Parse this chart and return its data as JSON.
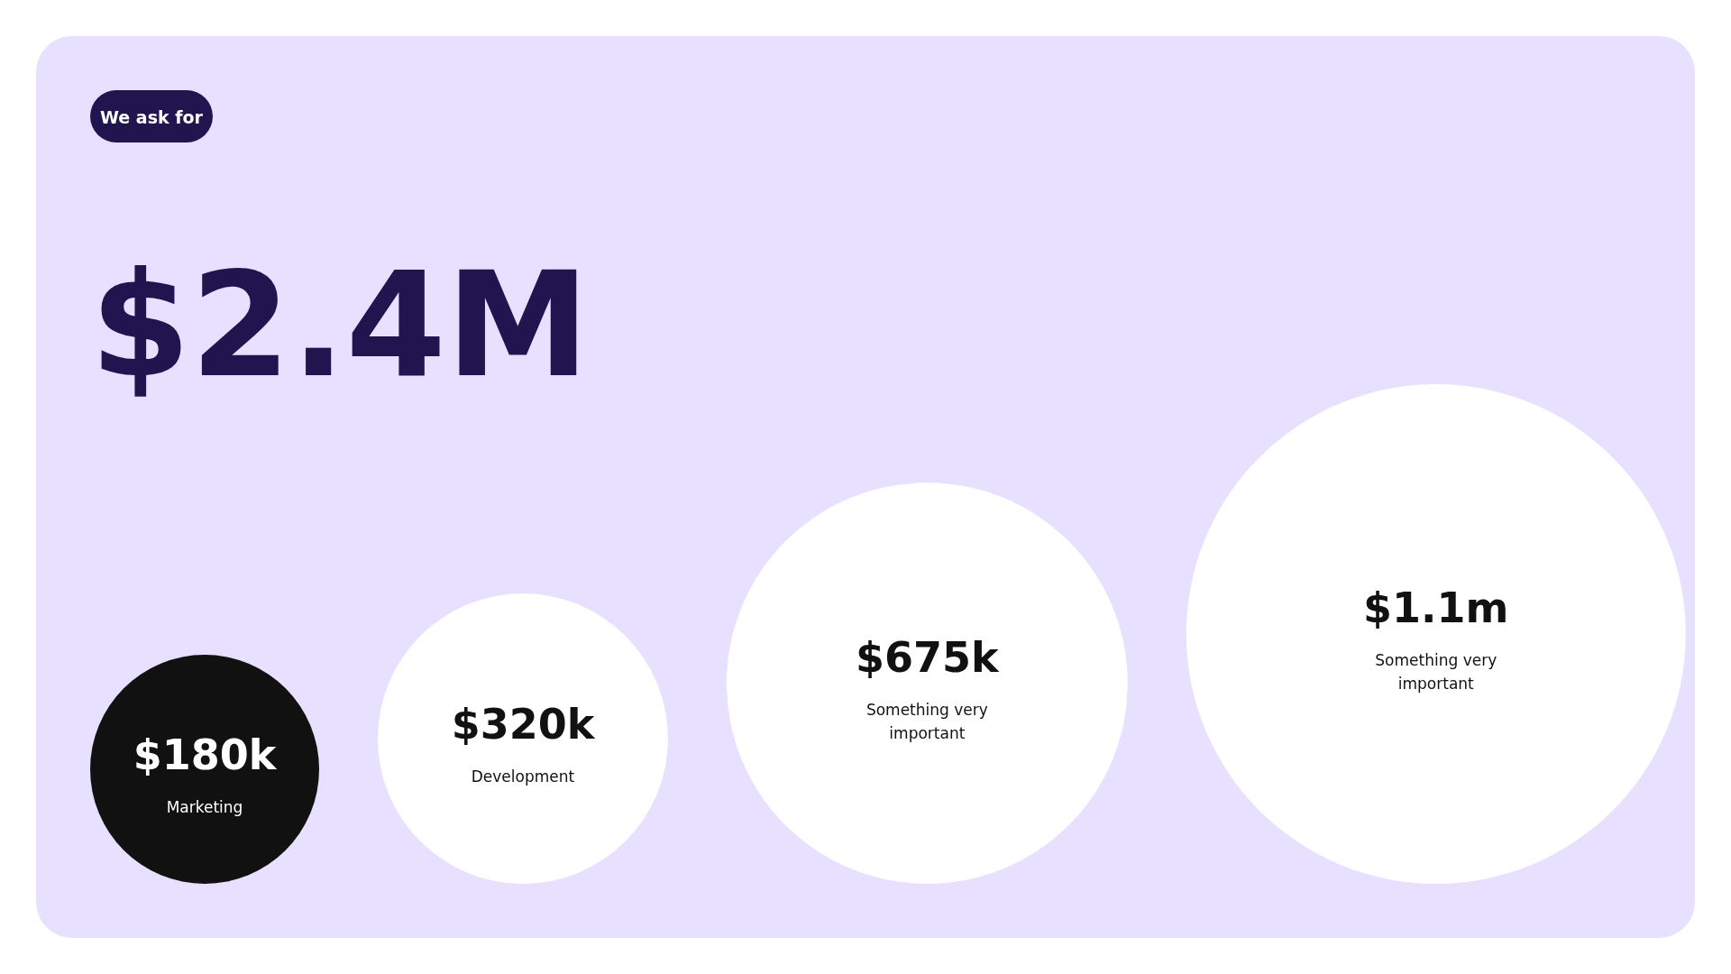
{
  "chart_data": {
    "type": "other",
    "subtitle": "We ask for",
    "title": "$2.4M",
    "categories": [
      "Marketing",
      "Development",
      "Something very important",
      "Something very important"
    ],
    "values": [
      180000,
      320000,
      675000,
      1100000
    ],
    "value_labels": [
      "$180k",
      "$320k",
      "$675k",
      "$1.1m"
    ],
    "colors": [
      "#111111",
      "#ffffff",
      "#ffffff",
      "#ffffff"
    ]
  }
}
